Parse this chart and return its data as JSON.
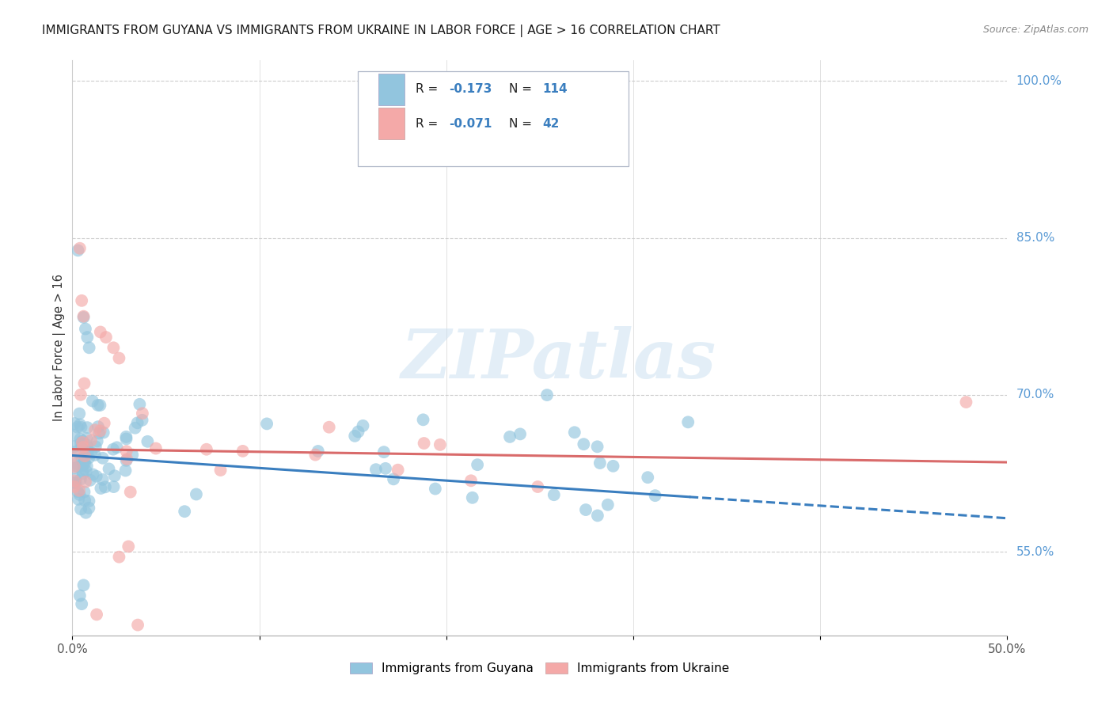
{
  "title": "IMMIGRANTS FROM GUYANA VS IMMIGRANTS FROM UKRAINE IN LABOR FORCE | AGE > 16 CORRELATION CHART",
  "source": "Source: ZipAtlas.com",
  "ylabel": "In Labor Force | Age > 16",
  "xlim": [
    0.0,
    0.5
  ],
  "ylim": [
    0.47,
    1.02
  ],
  "ytick_positions": [
    0.55,
    0.7,
    0.85,
    1.0
  ],
  "yticklabels_right": [
    "55.0%",
    "70.0%",
    "85.0%",
    "100.0%"
  ],
  "legend_r_blue": "-0.173",
  "legend_n_blue": "114",
  "legend_r_pink": "-0.071",
  "legend_n_pink": "42",
  "watermark_text": "ZIPatlas",
  "blue_color": "#92c5de",
  "pink_color": "#f4a9a8",
  "line_blue": "#3a7ebf",
  "line_pink": "#d96b6b",
  "legend_text_color": "#3a7ebf",
  "legend_rn_color": "#222222",
  "right_axis_color": "#5b9bd5",
  "grid_color": "#cccccc",
  "title_color": "#1a1a1a",
  "source_color": "#888888",
  "ylabel_color": "#333333"
}
